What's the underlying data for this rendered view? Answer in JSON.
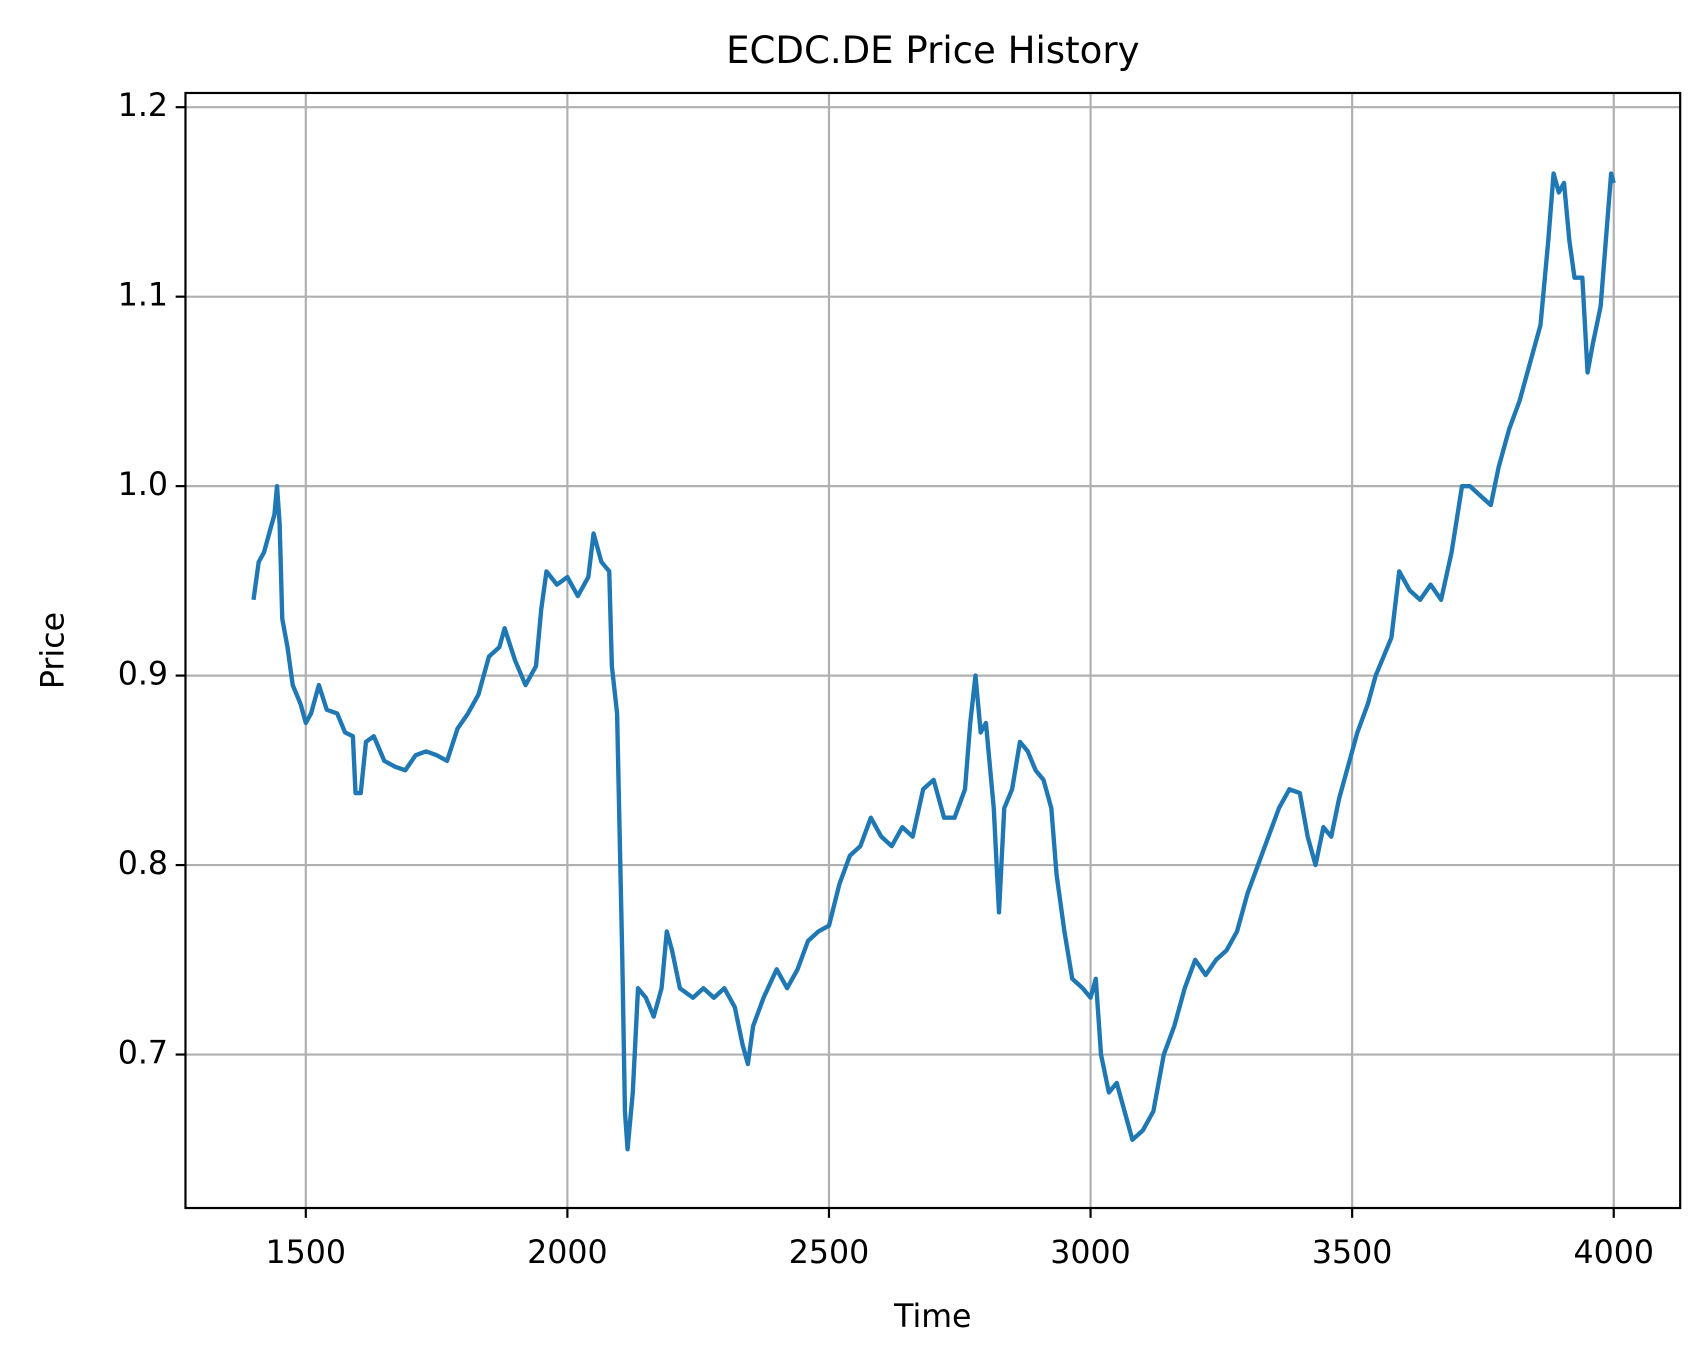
{
  "chart_data": {
    "type": "line",
    "title": "ECDC.DE Price History",
    "xlabel": "Time",
    "ylabel": "Price",
    "x": [
      1400,
      1410,
      1420,
      1430,
      1440,
      1445,
      1450,
      1455,
      1465,
      1475,
      1490,
      1500,
      1510,
      1525,
      1540,
      1560,
      1575,
      1590,
      1595,
      1605,
      1615,
      1630,
      1650,
      1670,
      1690,
      1710,
      1730,
      1750,
      1770,
      1790,
      1810,
      1830,
      1850,
      1870,
      1880,
      1900,
      1920,
      1940,
      1950,
      1960,
      1980,
      2000,
      2020,
      2040,
      2050,
      2065,
      2080,
      2085,
      2095,
      2105,
      2110,
      2115,
      2125,
      2135,
      2150,
      2165,
      2180,
      2190,
      2200,
      2215,
      2240,
      2260,
      2280,
      2300,
      2320,
      2335,
      2345,
      2355,
      2375,
      2400,
      2420,
      2440,
      2460,
      2480,
      2500,
      2520,
      2540,
      2560,
      2580,
      2600,
      2620,
      2640,
      2660,
      2680,
      2700,
      2720,
      2740,
      2760,
      2770,
      2780,
      2790,
      2800,
      2815,
      2825,
      2835,
      2850,
      2865,
      2880,
      2895,
      2910,
      2925,
      2935,
      2950,
      2965,
      2985,
      3000,
      3010,
      3020,
      3035,
      3050,
      3065,
      3080,
      3100,
      3120,
      3140,
      3160,
      3180,
      3200,
      3220,
      3240,
      3260,
      3280,
      3300,
      3320,
      3340,
      3360,
      3380,
      3400,
      3415,
      3430,
      3445,
      3460,
      3475,
      3490,
      3510,
      3530,
      3545,
      3560,
      3575,
      3590,
      3610,
      3630,
      3650,
      3670,
      3690,
      3710,
      3725,
      3745,
      3765,
      3780,
      3800,
      3820,
      3840,
      3860,
      3875,
      3885,
      3895,
      3905,
      3915,
      3925,
      3940,
      3950,
      3960,
      3975,
      3985,
      3995,
      4000
    ],
    "series": [
      {
        "name": "ECDC.DE",
        "color": "#1f77b4",
        "values": [
          0.94,
          0.96,
          0.965,
          0.975,
          0.985,
          1.0,
          0.98,
          0.93,
          0.915,
          0.895,
          0.885,
          0.875,
          0.88,
          0.895,
          0.882,
          0.88,
          0.87,
          0.868,
          0.838,
          0.838,
          0.865,
          0.868,
          0.855,
          0.852,
          0.85,
          0.858,
          0.86,
          0.858,
          0.855,
          0.872,
          0.88,
          0.89,
          0.91,
          0.915,
          0.925,
          0.908,
          0.895,
          0.905,
          0.935,
          0.955,
          0.948,
          0.952,
          0.942,
          0.952,
          0.975,
          0.96,
          0.955,
          0.905,
          0.88,
          0.75,
          0.67,
          0.65,
          0.68,
          0.735,
          0.73,
          0.72,
          0.735,
          0.765,
          0.755,
          0.735,
          0.73,
          0.735,
          0.73,
          0.735,
          0.725,
          0.705,
          0.695,
          0.715,
          0.73,
          0.745,
          0.735,
          0.745,
          0.76,
          0.765,
          0.768,
          0.79,
          0.805,
          0.81,
          0.825,
          0.815,
          0.81,
          0.82,
          0.815,
          0.84,
          0.845,
          0.825,
          0.825,
          0.84,
          0.875,
          0.9,
          0.87,
          0.875,
          0.83,
          0.775,
          0.83,
          0.84,
          0.865,
          0.86,
          0.85,
          0.845,
          0.83,
          0.795,
          0.765,
          0.74,
          0.735,
          0.73,
          0.74,
          0.7,
          0.68,
          0.685,
          0.67,
          0.655,
          0.66,
          0.67,
          0.7,
          0.715,
          0.735,
          0.75,
          0.742,
          0.75,
          0.755,
          0.765,
          0.785,
          0.8,
          0.815,
          0.83,
          0.84,
          0.838,
          0.815,
          0.8,
          0.82,
          0.815,
          0.835,
          0.85,
          0.87,
          0.885,
          0.9,
          0.91,
          0.92,
          0.955,
          0.945,
          0.94,
          0.948,
          0.94,
          0.965,
          1.0,
          1.0,
          0.995,
          0.99,
          1.01,
          1.03,
          1.045,
          1.065,
          1.085,
          1.13,
          1.165,
          1.155,
          1.16,
          1.13,
          1.11,
          1.11,
          1.06,
          1.075,
          1.095,
          1.13,
          1.165,
          1.16
        ]
      }
    ],
    "xlim": [
      1270,
      4127
    ],
    "ylim": [
      0.619,
      1.2075
    ],
    "xticks": [
      1500,
      2000,
      2500,
      3000,
      3500,
      4000
    ],
    "yticks": [
      0.7,
      0.8,
      0.9,
      {
        "value": 1.0,
        "label": "1.0"
      },
      1.1,
      1.2
    ],
    "grid": true
  }
}
